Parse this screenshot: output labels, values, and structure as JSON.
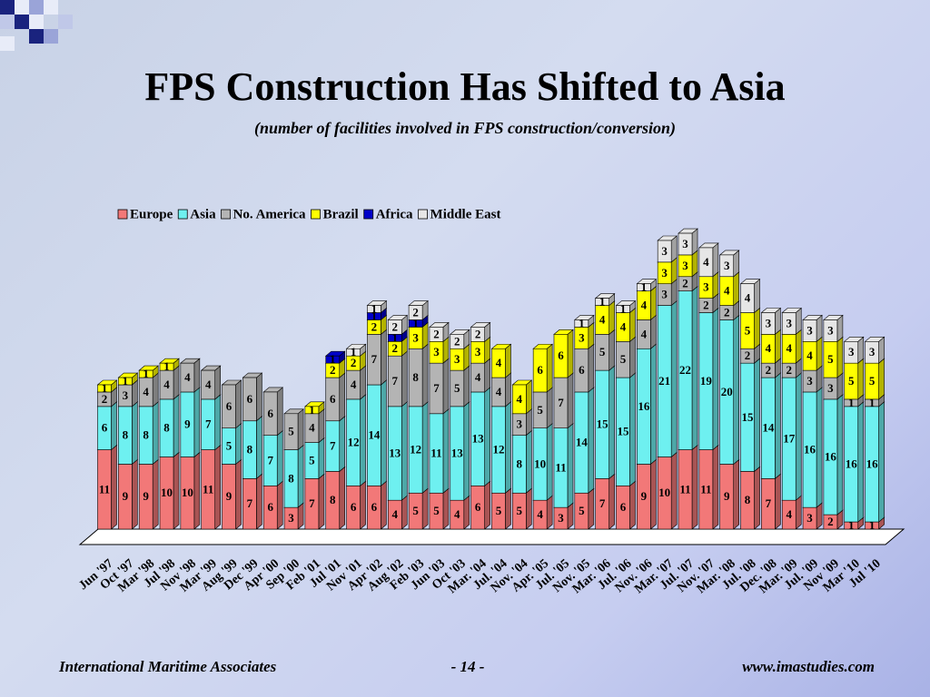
{
  "chart_data": {
    "type": "bar3d_stacked",
    "title": "FPS Construction Has Shifted to Asia",
    "subtitle": "(number of facilities involved in FPS construction/conversion)",
    "categories": [
      "Jun '97",
      "Oct '97",
      "Mar '98",
      "Jul '98",
      "Nov '98",
      "Mar '99",
      "Aug '99",
      "Dec '99",
      "Apr '00",
      "Sep '00",
      "Feb '01",
      "Jul '01",
      "Nov '01",
      "Apr '02",
      "Aug '02",
      "Feb '03",
      "Jun '03",
      "Oct '03",
      "Mar. '04",
      "Jul. '04",
      "Nov. '04",
      "Apr. '05",
      "Jul. '05",
      "Nov. '05",
      "Mar. '06",
      "Jul. '06",
      "Nov. '06",
      "Mar. '07",
      "Jul. '07",
      "Nov. '07",
      "Mar. '08",
      "Jul. '08",
      "Dec. '08",
      "Mar. '09",
      "Jul. '09",
      "Nov '09",
      "Mar '10",
      "Jul '10"
    ],
    "series": [
      {
        "name": "Europe",
        "color": "#f27878",
        "values": [
          11,
          9,
          9,
          10,
          10,
          11,
          9,
          7,
          6,
          3,
          7,
          8,
          6,
          6,
          4,
          5,
          5,
          4,
          6,
          5,
          5,
          4,
          3,
          5,
          7,
          6,
          9,
          10,
          11,
          11,
          9,
          8,
          7,
          4,
          3,
          2,
          1,
          1
        ]
      },
      {
        "name": "Asia",
        "color": "#6ef0f0",
        "values": [
          6,
          8,
          8,
          8,
          9,
          7,
          5,
          8,
          7,
          8,
          5,
          7,
          12,
          14,
          13,
          12,
          11,
          13,
          13,
          12,
          8,
          10,
          11,
          14,
          15,
          15,
          16,
          21,
          22,
          19,
          20,
          15,
          14,
          17,
          16,
          16,
          16,
          16
        ]
      },
      {
        "name": "No. America",
        "color": "#b4b4b4",
        "values": [
          2,
          3,
          4,
          4,
          4,
          4,
          6,
          6,
          6,
          5,
          4,
          6,
          4,
          7,
          7,
          8,
          7,
          5,
          4,
          4,
          3,
          5,
          7,
          6,
          5,
          5,
          4,
          3,
          2,
          2,
          2,
          2,
          2,
          2,
          3,
          3,
          1,
          1
        ]
      },
      {
        "name": "Brazil",
        "color": "#ffff00",
        "values": [
          1,
          1,
          1,
          1,
          null,
          null,
          null,
          null,
          null,
          null,
          1,
          2,
          2,
          2,
          2,
          3,
          3,
          3,
          3,
          4,
          4,
          6,
          6,
          3,
          4,
          4,
          4,
          3,
          3,
          3,
          4,
          5,
          4,
          4,
          4,
          5,
          5,
          5
        ]
      },
      {
        "name": "Africa",
        "color": "#0000c8",
        "values": [
          null,
          null,
          null,
          null,
          null,
          null,
          null,
          null,
          null,
          null,
          null,
          1,
          null,
          1,
          1,
          1,
          null,
          null,
          null,
          null,
          null,
          null,
          null,
          null,
          null,
          null,
          null,
          null,
          null,
          null,
          null,
          null,
          null,
          null,
          null,
          null,
          null,
          null
        ]
      },
      {
        "name": "Middle East",
        "color": "#e6e6e6",
        "values": [
          null,
          null,
          null,
          null,
          null,
          null,
          null,
          null,
          null,
          null,
          null,
          null,
          1,
          1,
          2,
          2,
          2,
          2,
          2,
          null,
          null,
          null,
          null,
          1,
          1,
          1,
          1,
          3,
          3,
          4,
          3,
          4,
          3,
          3,
          3,
          3,
          3,
          3
        ]
      }
    ],
    "legend": "top"
  },
  "footer": {
    "left": "International Maritime Associates",
    "center": "- 14 -",
    "right": "www.imastudies.com"
  }
}
